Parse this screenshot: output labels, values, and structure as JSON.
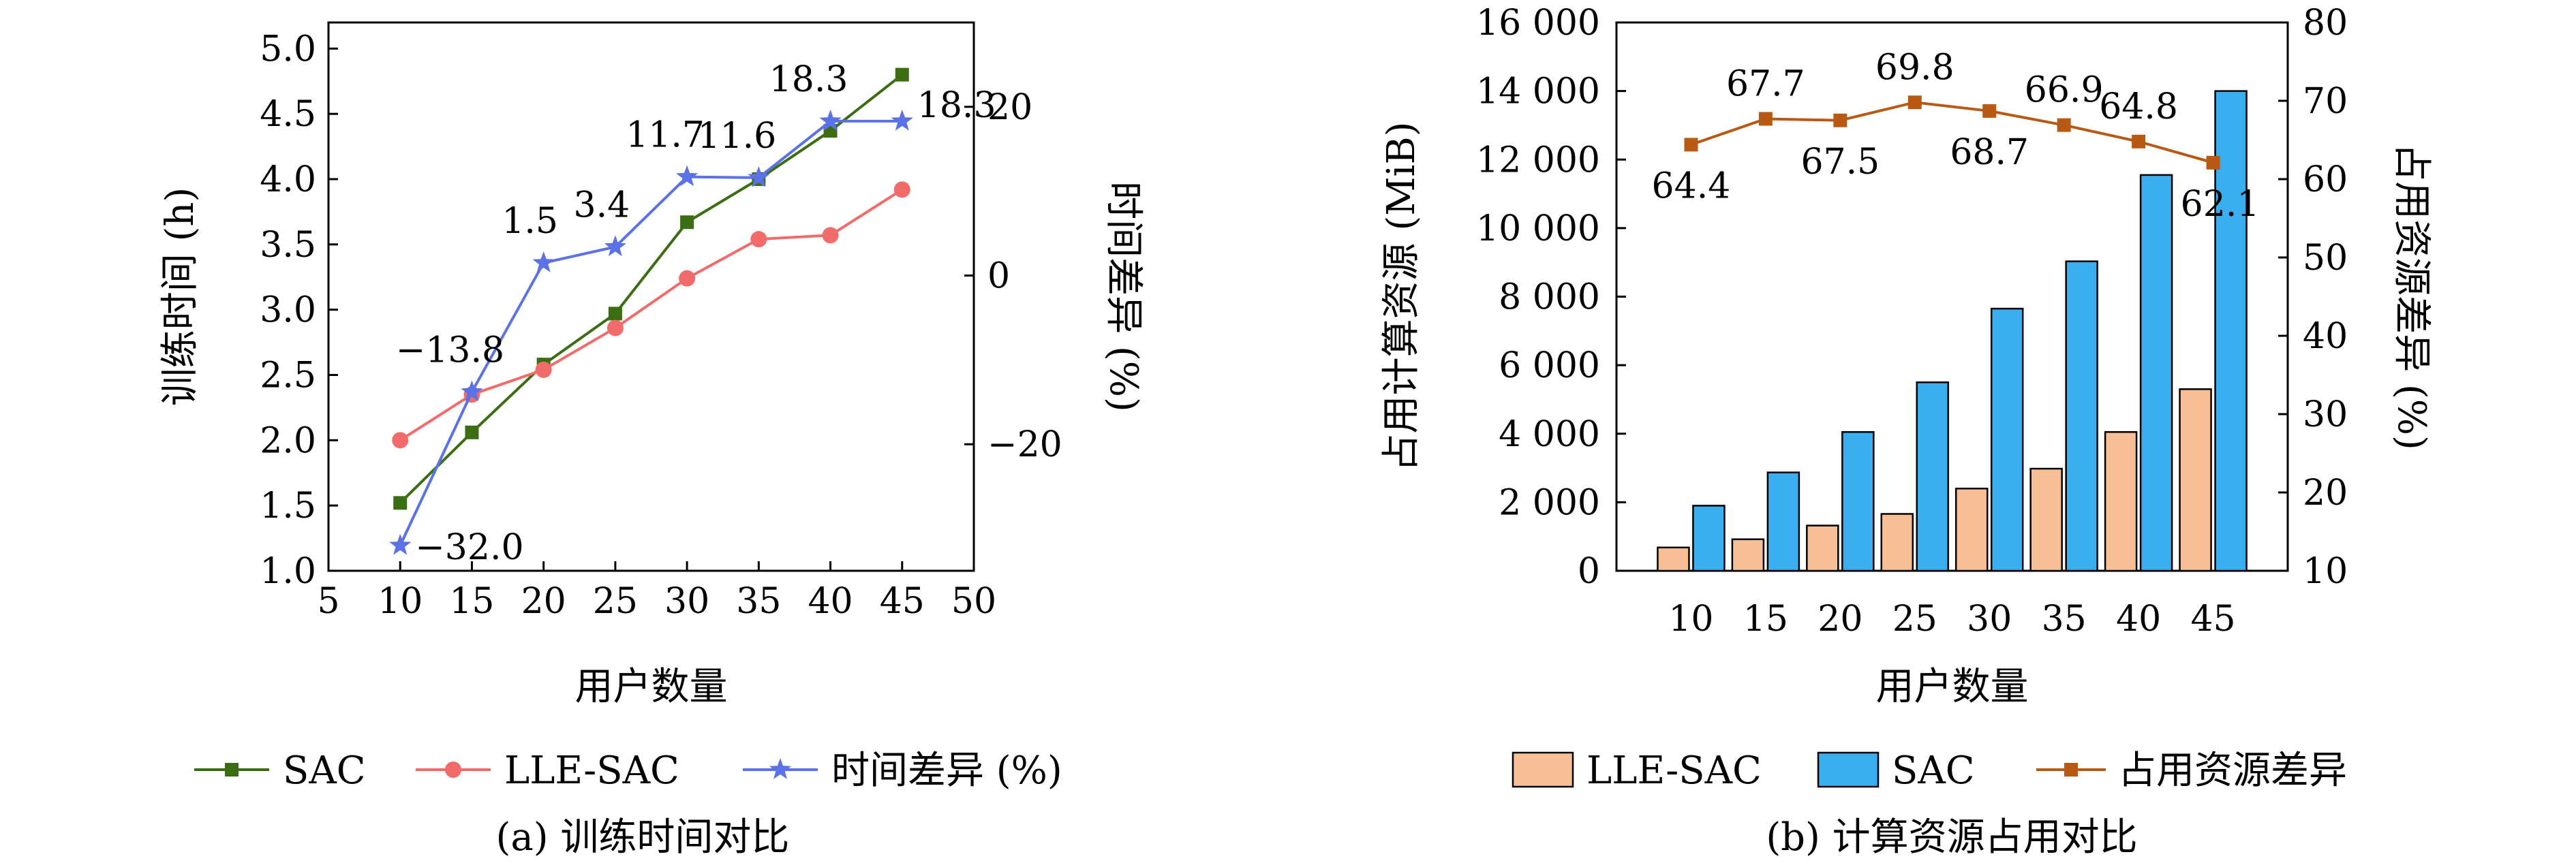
{
  "chart_data": [
    {
      "type": "line",
      "caption": "(a) 训练时间对比",
      "xlabel": "用户数量",
      "ylabel": "训练时间 (h)",
      "y2label": "时间差异 (%)",
      "x": [
        10,
        15,
        20,
        25,
        30,
        35,
        40,
        45
      ],
      "xlim": [
        5,
        50
      ],
      "xticks": [
        "5",
        "10",
        "15",
        "20",
        "25",
        "30",
        "35",
        "40",
        "45",
        "50"
      ],
      "ylim": [
        1.0,
        5.2
      ],
      "yticks": [
        "1.0",
        "1.5",
        "2.0",
        "2.5",
        "3.0",
        "3.5",
        "4.0",
        "4.5",
        "5.0"
      ],
      "y2lim": [
        -35,
        30
      ],
      "y2ticks": [
        "−20",
        "0",
        "20"
      ],
      "grid": false,
      "legend_position": "bottom",
      "series": [
        {
          "name": "SAC",
          "axis": "left",
          "marker": "square",
          "color": "#3b6e12",
          "values": [
            1.52,
            2.06,
            2.58,
            2.97,
            3.67,
            4.0,
            4.37,
            4.8
          ]
        },
        {
          "name": "LLE-SAC",
          "axis": "left",
          "marker": "circle",
          "color": "#f26b6b",
          "values": [
            2.0,
            2.35,
            2.54,
            2.86,
            3.24,
            3.54,
            3.57,
            3.92
          ]
        },
        {
          "name": "时间差异 (%)",
          "axis": "right",
          "marker": "star",
          "color": "#5b72e6",
          "values": [
            -32.0,
            -13.8,
            1.5,
            3.4,
            11.7,
            11.6,
            18.3,
            18.3
          ],
          "labels": [
            "−32.0",
            "−13.8",
            "1.5",
            "3.4",
            "11.7",
            "11.6",
            "18.3",
            "18.3"
          ]
        }
      ]
    },
    {
      "type": "bar",
      "caption": "(b) 计算资源占用对比",
      "xlabel": "用户数量",
      "ylabel": "占用计算资源 (MiB)",
      "y2label": "占用资源差异 (%)",
      "categories": [
        "10",
        "15",
        "20",
        "25",
        "30",
        "35",
        "40",
        "45"
      ],
      "ylim": [
        0,
        16000
      ],
      "yticks": [
        "0",
        "2 000",
        "4 000",
        "6 000",
        "8 000",
        "10 000",
        "12 000",
        "14 000",
        "16 000"
      ],
      "y2lim": [
        10,
        80
      ],
      "y2ticks": [
        "10",
        "20",
        "30",
        "40",
        "50",
        "60",
        "70",
        "80"
      ],
      "grid": false,
      "legend_position": "bottom",
      "series": [
        {
          "name": "LLE-SAC",
          "axis": "left",
          "kind": "bar",
          "color": "#f7bf95",
          "values": [
            680,
            920,
            1320,
            1660,
            2400,
            2980,
            4050,
            5300
          ]
        },
        {
          "name": "SAC",
          "axis": "left",
          "kind": "bar",
          "color": "#3aaeee",
          "values": [
            1900,
            2870,
            4050,
            5500,
            7650,
            9030,
            11550,
            14000
          ]
        },
        {
          "name": "占用资源差异",
          "axis": "right",
          "kind": "line",
          "marker": "square",
          "color": "#b85a14",
          "values": [
            64.4,
            67.7,
            67.5,
            69.8,
            68.7,
            66.9,
            64.8,
            62.1
          ],
          "labels": [
            "64.4",
            "67.7",
            "67.5",
            "69.8",
            "68.7",
            "66.9",
            "64.8",
            "62.1"
          ]
        }
      ]
    }
  ]
}
